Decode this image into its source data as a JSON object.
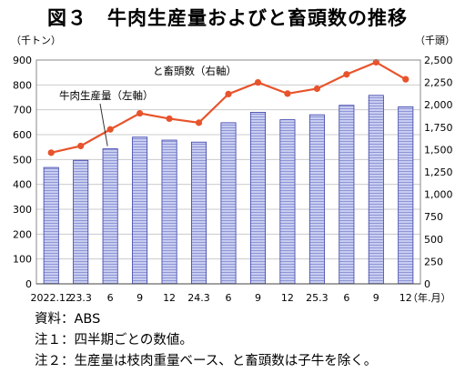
{
  "title": "図３　牛肉生産量およびと畜頭数の推移",
  "notes": [
    "資料：ABS",
    "注１：四半期ごとの数値。",
    "注２：生産量は枝肉重量ベース、と畜頭数は子牛を除く。"
  ],
  "colors": {
    "bar_fill": "#c8cdf0",
    "bar_stroke": "#3a3fa8",
    "line": "#e8532b"
  },
  "chart_data": {
    "type": "bar+line",
    "categories": [
      "2022.12",
      "23.3",
      "6",
      "9",
      "12",
      "24.3",
      "6",
      "9",
      "12",
      "25.3",
      "6",
      "9",
      "12"
    ],
    "x_unit_label": "（年.月）",
    "left_axis": {
      "unit_label": "（千トン）",
      "ylim": [
        0,
        900
      ],
      "ticks": [
        0,
        100,
        200,
        300,
        400,
        500,
        600,
        700,
        800,
        900
      ]
    },
    "right_axis": {
      "unit_label": "（千頭）",
      "ylim": [
        0,
        2500
      ],
      "ticks": [
        0,
        250,
        500,
        750,
        1000,
        1250,
        1500,
        1750,
        2000,
        2250,
        2500
      ],
      "tick_labels": [
        "0",
        "250",
        "500",
        "750",
        "1,000",
        "1,250",
        "1,500",
        "1,750",
        "2,000",
        "2,250",
        "2,500"
      ]
    },
    "series": [
      {
        "name": "牛肉生産量（左軸）",
        "type": "bar",
        "axis": "left",
        "values": [
          468,
          497,
          543,
          590,
          578,
          570,
          648,
          690,
          660,
          680,
          718,
          758,
          712
        ]
      },
      {
        "name": "と畜頭数（右軸）",
        "type": "line",
        "axis": "right",
        "values": [
          1465,
          1540,
          1725,
          1905,
          1845,
          1800,
          2120,
          2250,
          2125,
          2180,
          2340,
          2475,
          2285
        ]
      }
    ],
    "grid": true
  }
}
